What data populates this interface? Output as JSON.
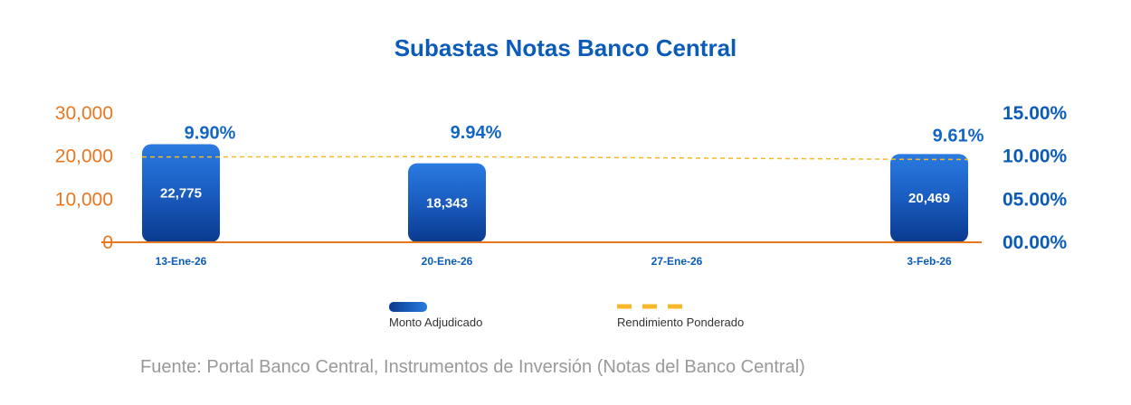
{
  "chart_data": {
    "type": "bar",
    "title": "Subastas Notas Banco Central",
    "categories": [
      "13-Ene-26",
      "20-Ene-26",
      "27-Ene-26",
      "3-Feb-26"
    ],
    "series": [
      {
        "name": "Monto Adjudicado",
        "type": "bar",
        "axis": "left",
        "values": [
          22775,
          18343,
          null,
          20469
        ],
        "labels": [
          "22,775",
          "18,343",
          "",
          "20,469"
        ]
      },
      {
        "name": "Rendimiento Ponderado",
        "type": "line",
        "axis": "right",
        "values": [
          9.9,
          9.94,
          null,
          9.61
        ],
        "labels": [
          "9.90%",
          "9.94%",
          "",
          "9.61%"
        ]
      }
    ],
    "left_axis": {
      "ylim": [
        0,
        30000
      ],
      "ticks": [
        0,
        10000,
        20000,
        30000
      ],
      "tick_labels": [
        "0",
        "10,000",
        "20,000",
        "30,000"
      ]
    },
    "right_axis": {
      "ylim": [
        0,
        15
      ],
      "ticks": [
        0,
        5,
        10,
        15
      ],
      "tick_labels": [
        "00.00%",
        "05.00%",
        "10.00%",
        "15.00%"
      ]
    },
    "legend": {
      "placement": "bottom",
      "entries": [
        "Monto Adjudicado",
        "Rendimiento Ponderado"
      ]
    },
    "grid": false,
    "source": "Fuente: Portal Banco Central, Instrumentos de Inversión (Notas del Banco Central)",
    "colors": {
      "bar_top": "#2a7be0",
      "bar_bottom": "#0a3a8e",
      "line": "#f5b829",
      "axis": "#e8771f"
    }
  }
}
